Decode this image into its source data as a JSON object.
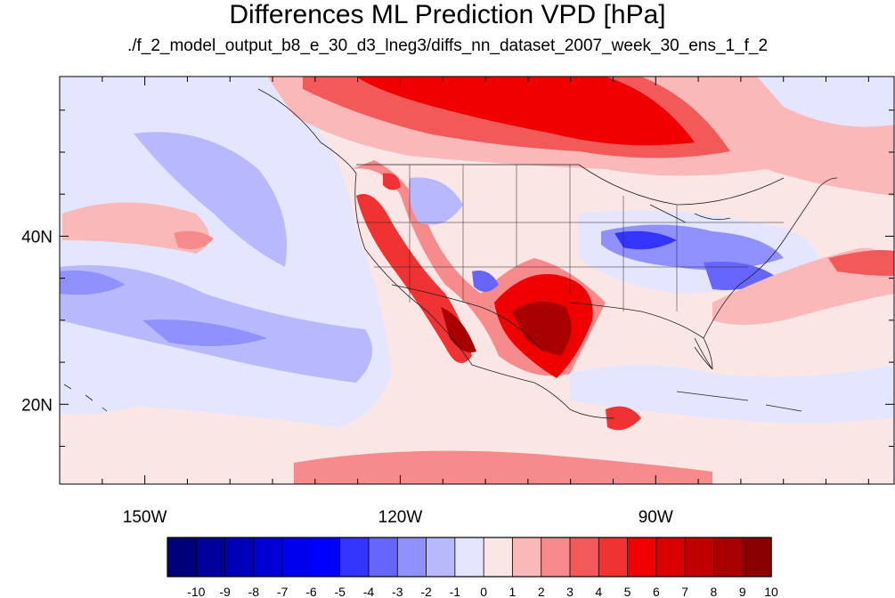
{
  "title": "Differences ML Prediction VPD [hPa]",
  "subtitle": "./f_2_model_output_b8_e_30_d3_lneg3/diffs_nn_dataset_2007_week_30_ens_1_f_2",
  "map": {
    "lon_range": [
      -160,
      -62
    ],
    "lat_range": [
      10.5,
      59
    ],
    "lon_ticks": [
      {
        "value": -150,
        "label": "150W"
      },
      {
        "value": -120,
        "label": "120W"
      },
      {
        "value": -90,
        "label": "90W"
      }
    ],
    "lat_ticks": [
      {
        "value": 40,
        "label": "40N"
      },
      {
        "value": 20,
        "label": "20N"
      }
    ],
    "minor_tick_step_degrees": 10,
    "background_color": "#fbe6e6"
  },
  "colorbar": {
    "levels": [
      "-10",
      "-9",
      "-8",
      "-7",
      "-6",
      "-5",
      "-4",
      "-3",
      "-2",
      "-1",
      "0",
      "1",
      "2",
      "3",
      "4",
      "5",
      "6",
      "7",
      "8",
      "9",
      "10"
    ],
    "colors": [
      "#00007a",
      "#00009a",
      "#0000b8",
      "#0000d4",
      "#0000ee",
      "#0000ff",
      "#3434ff",
      "#6666ff",
      "#9090ff",
      "#b8b8ff",
      "#e4e6ff",
      "#fbe6e6",
      "#fab8b8",
      "#f78a8a",
      "#f25a5a",
      "#f03232",
      "#f00000",
      "#d80000",
      "#c00000",
      "#a80000",
      "#8a0000"
    ]
  }
}
